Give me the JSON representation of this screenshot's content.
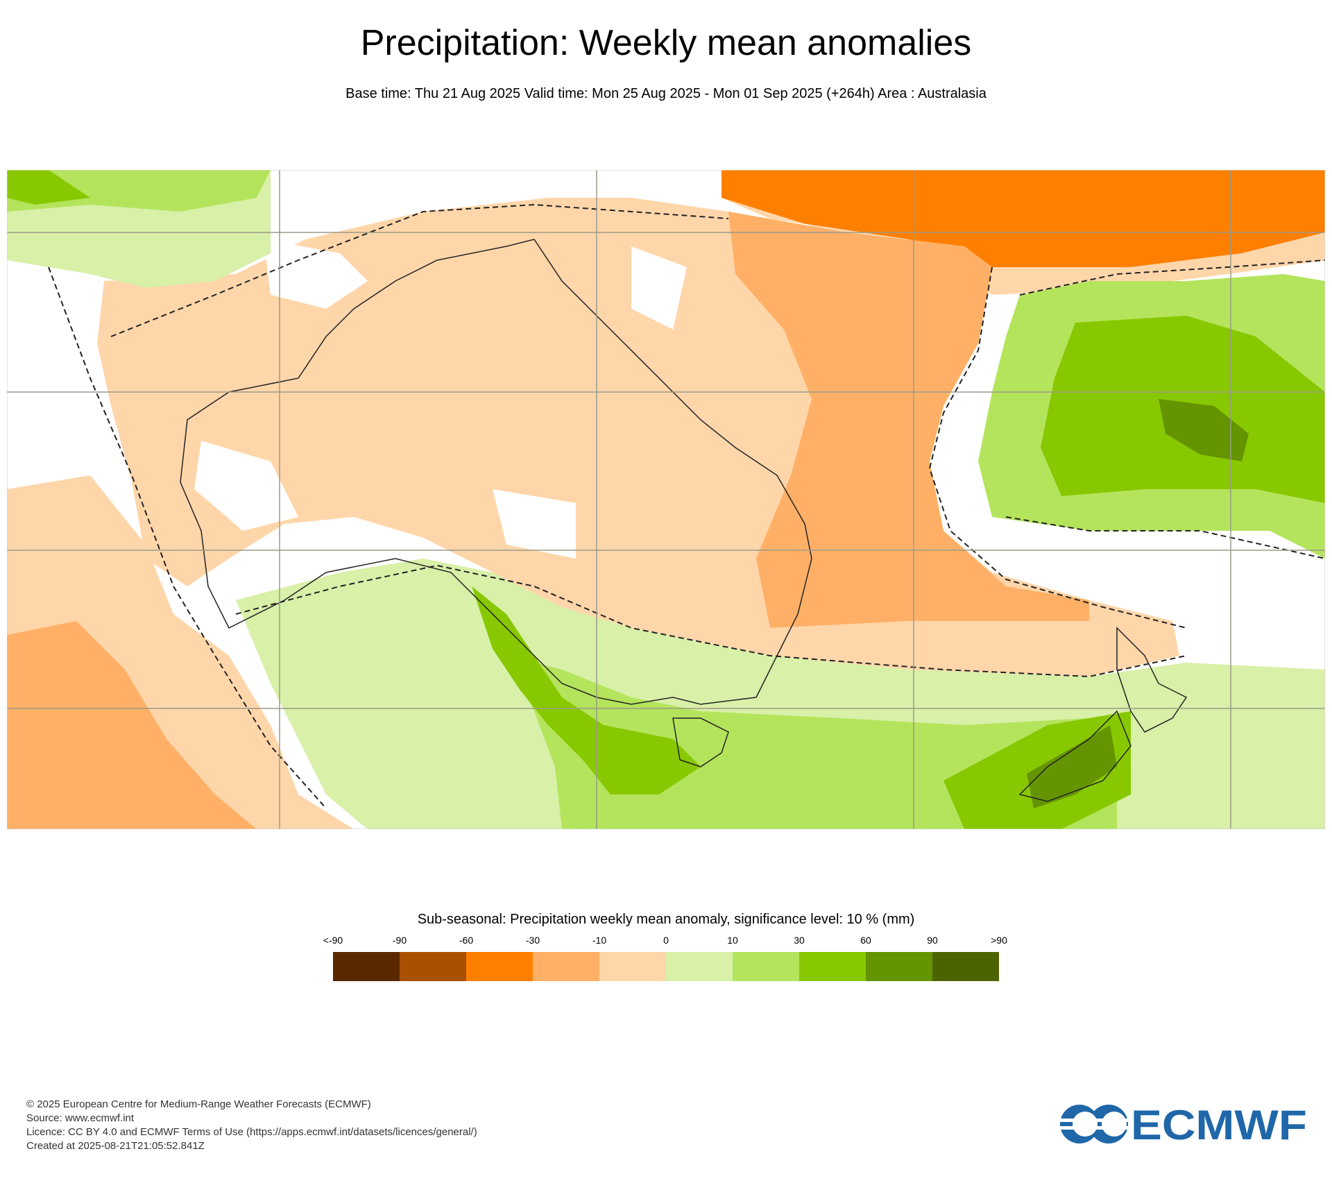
{
  "header": {
    "title": "Precipitation: Weekly mean anomalies",
    "subtitle": "Base time: Thu 21 Aug 2025 Valid time: Mon 25 Aug 2025 - Mon 01 Sep 2025 (+264h) Area : Australasia"
  },
  "legend": {
    "title": "Sub-seasonal: Precipitation weekly mean anomaly, significance level: 10 % (mm)",
    "ticks": [
      "<-90",
      "-90",
      "-60",
      "-30",
      "-10",
      "0",
      "10",
      "30",
      "60",
      "90",
      ">90"
    ],
    "colors": [
      "#5a2800",
      "#a85000",
      "#ff7f00",
      "#ffb066",
      "#ffd6aa",
      "#d8f0a8",
      "#b4e45c",
      "#88c800",
      "#649400",
      "#4c6400"
    ]
  },
  "footer": {
    "line1": "© 2025 European Centre for Medium-Range Weather Forecasts (ECMWF)",
    "line2": "Source: www.ecmwf.int",
    "line3": "Licence: CC BY 4.0 and ECMWF Terms of Use (https://apps.ecmwf.int/datasets/licences/general/)",
    "line4": "Created at 2025-08-21T21:05:52.841Z"
  },
  "logo": {
    "text": "ECMWF",
    "color": "#1f67a8"
  }
}
